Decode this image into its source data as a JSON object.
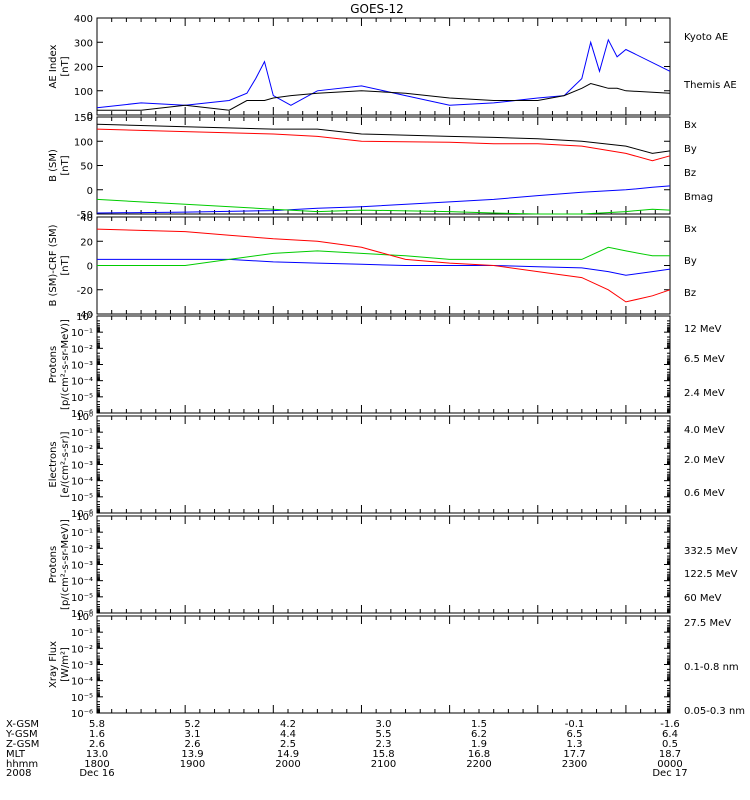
{
  "title": "GOES-12",
  "colors": {
    "blue": "#0000ff",
    "red": "#ff0000",
    "green": "#00cc00",
    "black": "#000000",
    "yellow": "#ffff00",
    "cyan": "#00aaff"
  },
  "chart_data": [
    {
      "type": "line",
      "id": "ae",
      "ylabel": [
        "AE Index",
        "[nT]"
      ],
      "ylim": [
        0,
        400
      ],
      "yticks": [
        0,
        100,
        200,
        300,
        400
      ],
      "x": [
        0,
        0.5,
        1,
        1.5,
        1.7,
        1.8,
        1.9,
        2,
        2.2,
        2.5,
        3,
        3.5,
        4,
        4.5,
        5,
        5.3,
        5.5,
        5.6,
        5.7,
        5.8,
        5.9,
        6,
        6.5
      ],
      "series": [
        {
          "name": "Kyoto AE",
          "color": "blue",
          "values": [
            30,
            50,
            40,
            60,
            90,
            150,
            220,
            80,
            40,
            100,
            120,
            80,
            40,
            50,
            70,
            80,
            150,
            300,
            180,
            310,
            240,
            270,
            180
          ]
        },
        {
          "name": "Themis AE",
          "color": "black",
          "values": [
            20,
            20,
            40,
            20,
            60,
            60,
            60,
            70,
            80,
            90,
            100,
            90,
            70,
            60,
            60,
            80,
            110,
            130,
            120,
            110,
            110,
            100,
            90
          ]
        }
      ]
    },
    {
      "type": "line",
      "id": "bsm",
      "ylabel": [
        "B (SM)",
        "[nT]"
      ],
      "ylim": [
        -50,
        150
      ],
      "yticks": [
        -50,
        0,
        50,
        100,
        150
      ],
      "x": [
        0,
        1,
        2,
        2.5,
        3,
        4,
        4.5,
        5,
        5.5,
        6,
        6.3,
        6.5
      ],
      "series": [
        {
          "name": "Bx",
          "color": "blue",
          "values": [
            -48,
            -46,
            -43,
            -38,
            -35,
            -25,
            -20,
            -12,
            -5,
            0,
            5,
            8
          ]
        },
        {
          "name": "By",
          "color": "green",
          "values": [
            -20,
            -30,
            -40,
            -45,
            -42,
            -45,
            -48,
            -50,
            -50,
            -45,
            -40,
            -42
          ]
        },
        {
          "name": "Bz",
          "color": "red",
          "values": [
            125,
            120,
            115,
            110,
            100,
            98,
            95,
            95,
            90,
            75,
            60,
            70
          ]
        },
        {
          "name": "Bmag",
          "color": "black",
          "values": [
            135,
            130,
            125,
            125,
            115,
            110,
            108,
            105,
            100,
            90,
            75,
            80
          ]
        }
      ]
    },
    {
      "type": "line",
      "id": "bdiff",
      "ylabel": [
        "B (SM)-CRF (SM)",
        "[nT]"
      ],
      "ylim": [
        -40,
        40
      ],
      "yticks": [
        -40,
        -20,
        0,
        20,
        40
      ],
      "x": [
        0,
        1,
        1.5,
        2,
        2.5,
        3,
        3.5,
        4,
        4.5,
        5,
        5.5,
        5.8,
        6,
        6.3,
        6.5
      ],
      "series": [
        {
          "name": "Bx",
          "color": "blue",
          "values": [
            5,
            5,
            5,
            3,
            2,
            1,
            0,
            0,
            0,
            -1,
            -2,
            -5,
            -8,
            -5,
            -3
          ]
        },
        {
          "name": "By",
          "color": "green",
          "values": [
            0,
            0,
            5,
            10,
            12,
            10,
            8,
            5,
            5,
            5,
            5,
            15,
            12,
            8,
            8
          ]
        },
        {
          "name": "Bz",
          "color": "red",
          "values": [
            30,
            28,
            25,
            22,
            20,
            15,
            5,
            2,
            0,
            -5,
            -10,
            -20,
            -30,
            -25,
            -20
          ]
        }
      ]
    },
    {
      "type": "line",
      "id": "protons",
      "ylabel": [
        "Protons",
        "[p/(cm²-s-sr-MeV)]"
      ],
      "ylim": [
        -6,
        0
      ],
      "yticks": [
        0,
        -1,
        -2,
        -3,
        -4,
        -5,
        -6
      ],
      "series": [
        {
          "name": "12 MeV",
          "color": "red"
        },
        {
          "name": "6.5 MeV",
          "color": "green"
        },
        {
          "name": "2.4 MeV",
          "color": "black"
        }
      ]
    },
    {
      "type": "line",
      "id": "electrons",
      "ylabel": [
        "Electrons",
        "[e/(cm²-s-sr)]"
      ],
      "ylim": [
        -6,
        0
      ],
      "yticks": [
        0,
        -1,
        -2,
        -3,
        -4,
        -5,
        -6
      ],
      "series": [
        {
          "name": "4.0 MeV",
          "color": "red"
        },
        {
          "name": "2.0 MeV",
          "color": "green"
        },
        {
          "name": "0.6 MeV",
          "color": "black"
        }
      ]
    },
    {
      "type": "line",
      "id": "protons2",
      "ylabel": [
        "Protons",
        "[p/(cm²-s-sr-MeV)]"
      ],
      "ylim": [
        -6,
        0
      ],
      "yticks": [
        0,
        -1,
        -2,
        -3,
        -4,
        -5,
        -6
      ],
      "series": [
        {
          "name": "332.5 MeV",
          "color": "red"
        },
        {
          "name": "122.5 MeV",
          "color": "yellow"
        },
        {
          "name": "60 MeV",
          "color": "cyan"
        },
        {
          "name": "27.5 MeV",
          "color": "black"
        }
      ]
    },
    {
      "type": "line",
      "id": "xray",
      "ylabel": [
        "Xray  Flux",
        "[W/m²]"
      ],
      "ylim": [
        -6,
        0
      ],
      "yticks": [
        0,
        -1,
        -2,
        -3,
        -4,
        -5,
        -6
      ],
      "series": [
        {
          "name": "0.1-0.8 nm",
          "color": "red"
        },
        {
          "name": "0.05-0.3 nm",
          "color": "blue"
        }
      ]
    }
  ],
  "x_axis": {
    "labels": [
      "X-GSM",
      "Y-GSM",
      "Z-GSM",
      "MLT",
      "hhmm",
      "2008"
    ],
    "columns": [
      [
        "5.8",
        "1.6",
        "2.6",
        "13.0",
        "1800",
        "Dec 16"
      ],
      [
        "5.2",
        "3.1",
        "2.6",
        "13.9",
        "1900",
        ""
      ],
      [
        "4.2",
        "4.4",
        "2.5",
        "14.9",
        "2000",
        ""
      ],
      [
        "3.0",
        "5.5",
        "2.3",
        "15.8",
        "2100",
        ""
      ],
      [
        "1.5",
        "6.2",
        "1.9",
        "16.8",
        "2200",
        ""
      ],
      [
        "-0.1",
        "6.5",
        "1.3",
        "17.7",
        "2300",
        ""
      ],
      [
        "-1.6",
        "6.4",
        "0.5",
        "18.7",
        "0000",
        "Dec 17"
      ]
    ]
  }
}
